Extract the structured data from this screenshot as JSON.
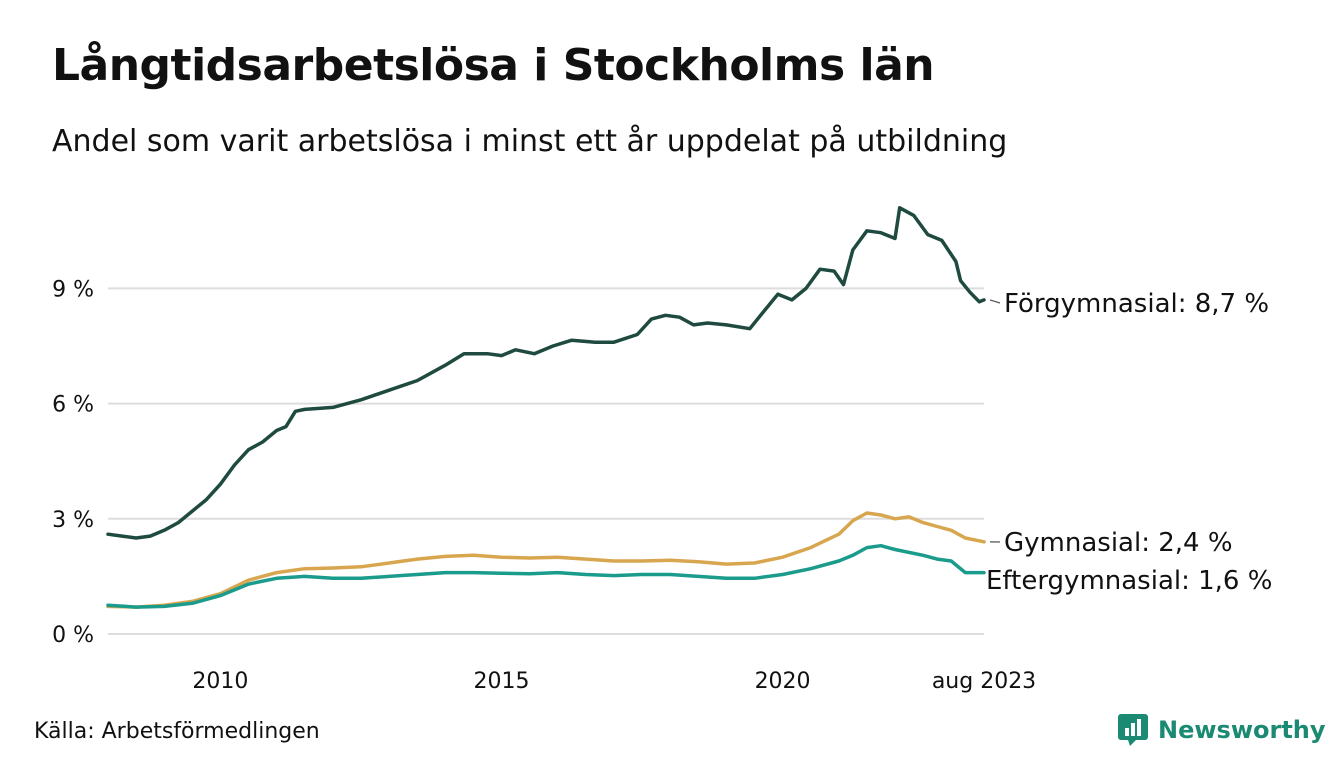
{
  "header": {
    "title": "Långtidsarbetslösa i Stockholms län",
    "subtitle": "Andel som varit arbetslösa i minst ett år uppdelat på utbildning"
  },
  "footer": {
    "source": "Källa: Arbetsförmedlingen",
    "brand": "Newsworthy",
    "brand_icon": "newsworthy-logo-icon",
    "brand_color": "#1b8a73"
  },
  "chart_data": {
    "type": "line",
    "title": "Långtidsarbetslösa i Stockholms län",
    "subtitle": "Andel som varit arbetslösa i minst ett år uppdelat på utbildning",
    "xlabel": "",
    "ylabel": "",
    "x_range": [
      "2008-01",
      "2023-08"
    ],
    "ylim": [
      0,
      11.5
    ],
    "y_ticks": [
      0,
      3,
      6,
      9
    ],
    "y_tick_labels": [
      "0 %",
      "3 %",
      "6 %",
      "9 %"
    ],
    "x_tick_labels": [
      {
        "date": "2010-01",
        "label": "2010"
      },
      {
        "date": "2015-01",
        "label": "2015"
      },
      {
        "date": "2020-01",
        "label": "2020"
      },
      {
        "date": "2023-08",
        "label": "aug 2023"
      }
    ],
    "grid": "horizontal",
    "legend": "direct labels at line ends (right)",
    "series": [
      {
        "name": "Förgymnasial",
        "end_label": "Förgymnasial: 8,7 %",
        "color": "#1f4a40",
        "points": [
          [
            "2008-01",
            2.6
          ],
          [
            "2008-04",
            2.55
          ],
          [
            "2008-07",
            2.5
          ],
          [
            "2008-10",
            2.55
          ],
          [
            "2009-01",
            2.7
          ],
          [
            "2009-04",
            2.9
          ],
          [
            "2009-07",
            3.2
          ],
          [
            "2009-10",
            3.5
          ],
          [
            "2010-01",
            3.9
          ],
          [
            "2010-04",
            4.4
          ],
          [
            "2010-07",
            4.8
          ],
          [
            "2010-10",
            5.0
          ],
          [
            "2011-01",
            5.3
          ],
          [
            "2011-03",
            5.4
          ],
          [
            "2011-05",
            5.8
          ],
          [
            "2011-07",
            5.85
          ],
          [
            "2012-01",
            5.9
          ],
          [
            "2012-07",
            6.1
          ],
          [
            "2013-01",
            6.35
          ],
          [
            "2013-07",
            6.6
          ],
          [
            "2014-01",
            7.0
          ],
          [
            "2014-05",
            7.3
          ],
          [
            "2014-10",
            7.3
          ],
          [
            "2015-01",
            7.25
          ],
          [
            "2015-04",
            7.4
          ],
          [
            "2015-08",
            7.3
          ],
          [
            "2015-12",
            7.5
          ],
          [
            "2016-04",
            7.65
          ],
          [
            "2016-09",
            7.6
          ],
          [
            "2017-01",
            7.6
          ],
          [
            "2017-06",
            7.8
          ],
          [
            "2017-09",
            8.2
          ],
          [
            "2017-12",
            8.3
          ],
          [
            "2018-03",
            8.25
          ],
          [
            "2018-06",
            8.05
          ],
          [
            "2018-09",
            8.1
          ],
          [
            "2019-01",
            8.05
          ],
          [
            "2019-06",
            7.95
          ],
          [
            "2019-09",
            8.4
          ],
          [
            "2019-12",
            8.85
          ],
          [
            "2020-03",
            8.7
          ],
          [
            "2020-06",
            9.0
          ],
          [
            "2020-09",
            9.5
          ],
          [
            "2020-12",
            9.45
          ],
          [
            "2021-02",
            9.1
          ],
          [
            "2021-04",
            10.0
          ],
          [
            "2021-07",
            10.5
          ],
          [
            "2021-10",
            10.45
          ],
          [
            "2022-01",
            10.3
          ],
          [
            "2022-02",
            11.1
          ],
          [
            "2022-05",
            10.9
          ],
          [
            "2022-08",
            10.4
          ],
          [
            "2022-11",
            10.25
          ],
          [
            "2023-02",
            9.7
          ],
          [
            "2023-03",
            9.2
          ],
          [
            "2023-05",
            8.9
          ],
          [
            "2023-07",
            8.65
          ],
          [
            "2023-08",
            8.7
          ]
        ]
      },
      {
        "name": "Gymnasial",
        "end_label": "Gymnasial: 2,4 %",
        "color": "#d8a64f",
        "points": [
          [
            "2008-01",
            0.72
          ],
          [
            "2008-07",
            0.7
          ],
          [
            "2009-01",
            0.75
          ],
          [
            "2009-07",
            0.85
          ],
          [
            "2010-01",
            1.05
          ],
          [
            "2010-07",
            1.4
          ],
          [
            "2011-01",
            1.6
          ],
          [
            "2011-07",
            1.7
          ],
          [
            "2012-01",
            1.72
          ],
          [
            "2012-07",
            1.75
          ],
          [
            "2013-01",
            1.85
          ],
          [
            "2013-07",
            1.95
          ],
          [
            "2014-01",
            2.02
          ],
          [
            "2014-07",
            2.05
          ],
          [
            "2015-01",
            2.0
          ],
          [
            "2015-07",
            1.98
          ],
          [
            "2016-01",
            2.0
          ],
          [
            "2016-07",
            1.95
          ],
          [
            "2017-01",
            1.9
          ],
          [
            "2017-07",
            1.9
          ],
          [
            "2018-01",
            1.92
          ],
          [
            "2018-07",
            1.88
          ],
          [
            "2019-01",
            1.82
          ],
          [
            "2019-07",
            1.85
          ],
          [
            "2020-01",
            2.0
          ],
          [
            "2020-07",
            2.25
          ],
          [
            "2021-01",
            2.6
          ],
          [
            "2021-04",
            2.95
          ],
          [
            "2021-07",
            3.15
          ],
          [
            "2021-10",
            3.1
          ],
          [
            "2022-01",
            3.0
          ],
          [
            "2022-04",
            3.05
          ],
          [
            "2022-07",
            2.9
          ],
          [
            "2022-10",
            2.8
          ],
          [
            "2023-01",
            2.7
          ],
          [
            "2023-04",
            2.5
          ],
          [
            "2023-08",
            2.4
          ]
        ]
      },
      {
        "name": "Eftergymnasial",
        "end_label": "Eftergymnasial: 1,6 %",
        "color": "#1a9b8c",
        "points": [
          [
            "2008-01",
            0.75
          ],
          [
            "2008-07",
            0.7
          ],
          [
            "2009-01",
            0.72
          ],
          [
            "2009-07",
            0.8
          ],
          [
            "2010-01",
            1.0
          ],
          [
            "2010-07",
            1.3
          ],
          [
            "2011-01",
            1.45
          ],
          [
            "2011-07",
            1.5
          ],
          [
            "2012-01",
            1.45
          ],
          [
            "2012-07",
            1.45
          ],
          [
            "2013-01",
            1.5
          ],
          [
            "2013-07",
            1.55
          ],
          [
            "2014-01",
            1.6
          ],
          [
            "2014-07",
            1.6
          ],
          [
            "2015-01",
            1.58
          ],
          [
            "2015-07",
            1.57
          ],
          [
            "2016-01",
            1.6
          ],
          [
            "2016-07",
            1.55
          ],
          [
            "2017-01",
            1.52
          ],
          [
            "2017-07",
            1.55
          ],
          [
            "2018-01",
            1.55
          ],
          [
            "2018-07",
            1.5
          ],
          [
            "2019-01",
            1.45
          ],
          [
            "2019-07",
            1.45
          ],
          [
            "2020-01",
            1.55
          ],
          [
            "2020-07",
            1.7
          ],
          [
            "2021-01",
            1.9
          ],
          [
            "2021-04",
            2.05
          ],
          [
            "2021-07",
            2.25
          ],
          [
            "2021-10",
            2.3
          ],
          [
            "2022-01",
            2.2
          ],
          [
            "2022-07",
            2.05
          ],
          [
            "2022-10",
            1.95
          ],
          [
            "2023-01",
            1.9
          ],
          [
            "2023-04",
            1.6
          ],
          [
            "2023-08",
            1.6
          ]
        ]
      }
    ]
  }
}
